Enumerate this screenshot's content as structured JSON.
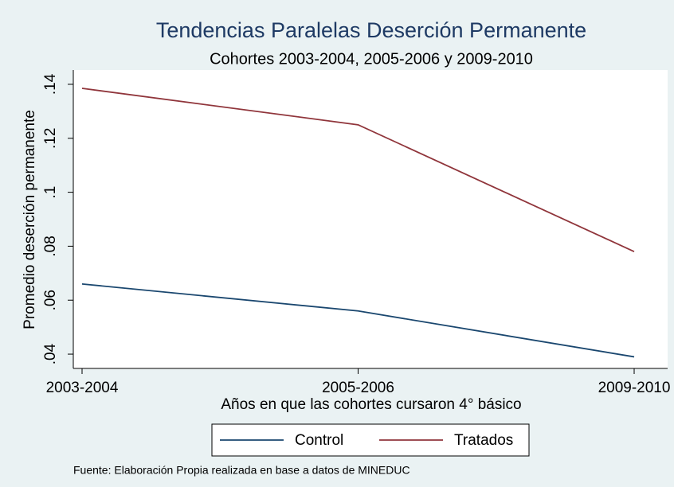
{
  "chart_data": {
    "type": "line",
    "title": "Tendencias Paralelas Deserción Permanente",
    "subtitle": "Cohortes 2003-2004, 2005-2006 y 2009-2010",
    "x_label": "Años en que las cohortes cursaron 4° básico",
    "y_label": "Promedio deserción permanente",
    "note": "Fuente: Elaboración Propia realizada en base a datos de MINEDUC",
    "categories": [
      "2003-2004",
      "2005-2006",
      "2009-2010"
    ],
    "series": [
      {
        "name": "Control",
        "color": "#1a476f",
        "values": [
          0.066,
          0.056,
          0.039
        ]
      },
      {
        "name": "Tratados",
        "color": "#90353b",
        "values": [
          0.1385,
          0.125,
          0.078
        ]
      }
    ],
    "ylim": [
      0.035,
      0.145
    ],
    "yticks": [
      {
        "value": 0.04,
        "label": ".04"
      },
      {
        "value": 0.06,
        "label": ".06"
      },
      {
        "value": 0.08,
        "label": ".08"
      },
      {
        "value": 0.1,
        "label": ".1"
      },
      {
        "value": 0.12,
        "label": ".12"
      },
      {
        "value": 0.14,
        "label": ".14"
      }
    ],
    "grid": false,
    "legend": "bottom"
  }
}
